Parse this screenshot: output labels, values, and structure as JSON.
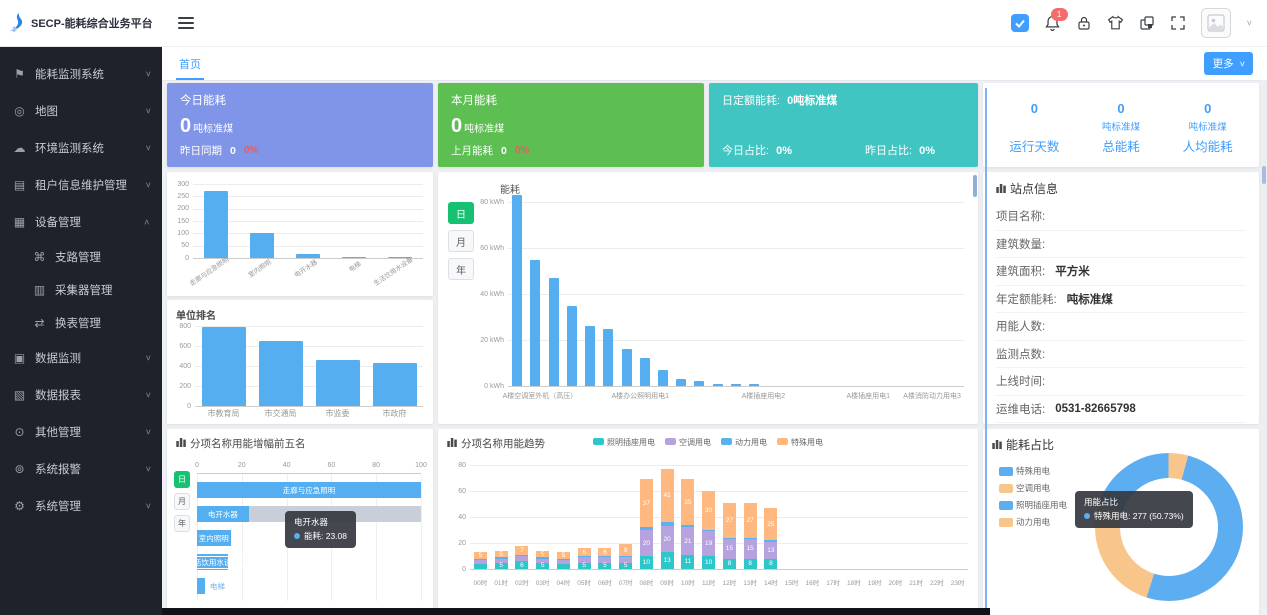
{
  "app": {
    "title": "SECP-能耗综合业务平台"
  },
  "sidebar": {
    "items": [
      {
        "label": "能耗监测系统",
        "icon": "flag-icon",
        "expandable": true
      },
      {
        "label": "地图",
        "icon": "map-pin-icon",
        "expandable": true
      },
      {
        "label": "环境监测系统",
        "icon": "cloud-icon",
        "expandable": true
      },
      {
        "label": "租户信息维护管理",
        "icon": "tenant-doc-icon",
        "expandable": true
      },
      {
        "label": "设备管理",
        "icon": "device-icon",
        "expandable": true,
        "expanded": true,
        "children": [
          {
            "label": "支路管理",
            "icon": "branch-icon"
          },
          {
            "label": "采集器管理",
            "icon": "collector-icon"
          },
          {
            "label": "换表管理",
            "icon": "swap-icon"
          }
        ]
      },
      {
        "label": "数据监测",
        "icon": "data-monitor-icon",
        "expandable": true
      },
      {
        "label": "数据报表",
        "icon": "report-icon",
        "expandable": true
      },
      {
        "label": "其他管理",
        "icon": "other-manage-icon",
        "expandable": true
      },
      {
        "label": "系统报警",
        "icon": "alarm-icon",
        "expandable": true
      },
      {
        "label": "系统管理",
        "icon": "gear-icon",
        "expandable": true
      }
    ]
  },
  "header": {
    "notification_count": "1"
  },
  "tabs": {
    "active": "首页",
    "more_label": "更多"
  },
  "cards": {
    "today": {
      "title": "今日能耗",
      "value": "0",
      "unit": "吨标准煤",
      "compare_label": "昨日同期",
      "compare_value": "0",
      "badge": "0%",
      "color": "#8095e8"
    },
    "month": {
      "title": "本月能耗",
      "value": "0",
      "unit": "吨标准煤",
      "compare_label": "上月能耗",
      "compare_value": "0",
      "badge": "0%",
      "color": "#5dbe52"
    },
    "quota": {
      "title_label": "日定额能耗:",
      "title_value": "0吨标准煤",
      "today_ratio_label": "今日占比:",
      "today_ratio": "0%",
      "yesterday_ratio_label": "昨日占比:",
      "yesterday_ratio": "0%",
      "color": "#41c5c2"
    },
    "stats": {
      "items": [
        {
          "value": "0",
          "unit": "",
          "label": "运行天数"
        },
        {
          "value": "0",
          "unit": "吨标准煤",
          "label": "总能耗"
        },
        {
          "value": "0",
          "unit": "吨标准煤",
          "label": "人均能耗"
        }
      ]
    }
  },
  "site_info": {
    "title": "站点信息",
    "rows": [
      {
        "label": "项目名称:",
        "value": ""
      },
      {
        "label": "建筑数量:",
        "value": ""
      },
      {
        "label": "建筑面积:",
        "value": "平方米"
      },
      {
        "label": "年定额能耗:",
        "value": "吨标准煤"
      },
      {
        "label": "用能人数:",
        "value": ""
      },
      {
        "label": "监测点数:",
        "value": ""
      },
      {
        "label": "上线时间:",
        "value": ""
      },
      {
        "label": "运维电话:",
        "value": "0531-82665798"
      }
    ]
  },
  "chart_data": [
    {
      "id": "item_energy_rank",
      "type": "bar",
      "title": "",
      "categories": [
        "走廊与应急照明",
        "室内照明",
        "电开水器",
        "电梯",
        "生活饮用水设备"
      ],
      "values": [
        270,
        100,
        15,
        6,
        5
      ],
      "ylim": [
        0,
        300
      ],
      "yticks": [
        "300",
        "250",
        "200",
        "150",
        "100",
        "50",
        "0"
      ],
      "bar_color": "#54aeef"
    },
    {
      "id": "unit_rank",
      "type": "bar",
      "title": "单位排名",
      "categories": [
        "市教育局",
        "市交通局",
        "市监委",
        "市政府"
      ],
      "values": [
        790,
        655,
        465,
        435
      ],
      "ylim": [
        0,
        800
      ],
      "yticks": [
        "800",
        "600",
        "400",
        "200",
        "0"
      ],
      "bar_color": "#54aeef"
    },
    {
      "id": "energy_by_branch",
      "type": "bar",
      "title": "能耗",
      "unit": "kWh",
      "toggle": [
        "日",
        "月",
        "年"
      ],
      "active_toggle": "日",
      "values": [
        83,
        55,
        47,
        35,
        26,
        25,
        16,
        12,
        7,
        3,
        2,
        1,
        1,
        1,
        0,
        0,
        0,
        0,
        0,
        0,
        0,
        0,
        0,
        0,
        0
      ],
      "xlabels_sparse": [
        "A楼空调室外机（高压）",
        "A楼办公照明用电1",
        "A楼插座用电2",
        "A楼插座用电1",
        "A楼消防动力用电3"
      ],
      "xlabel_positions_pct": [
        7,
        29,
        56,
        79,
        93
      ],
      "ylim": [
        0,
        80
      ],
      "yticks": [
        "80 kWh",
        "60 kWh",
        "40 kWh",
        "20 kWh",
        "0 kWh"
      ],
      "bar_color": "#54aeef"
    },
    {
      "id": "increase_top5",
      "type": "hbar",
      "title": "分项名称用能增幅前五名",
      "toggle": [
        "日",
        "月",
        "年"
      ],
      "active_toggle": "日",
      "xticks": [
        "0",
        "20",
        "40",
        "60",
        "80",
        "100"
      ],
      "xlim": [
        0,
        100
      ],
      "bars": [
        {
          "label": "走廊与应急照明",
          "value": 100
        },
        {
          "label": "电开水器",
          "value": 23.08,
          "track": true
        },
        {
          "label": "室内照明",
          "value": 15
        },
        {
          "label": "生活饮用水设备",
          "value": 14,
          "outlined": true
        },
        {
          "label": "电梯",
          "value": 3.5,
          "label_outside": true
        }
      ],
      "bar_color": "#54aeef",
      "tooltip": {
        "title": "电开水器",
        "line": "能耗: 23.08"
      }
    },
    {
      "id": "item_trend",
      "type": "stacked_bar",
      "title": "分项名称用能趋势",
      "categories": [
        "00时",
        "01时",
        "02时",
        "03时",
        "04时",
        "05时",
        "06时",
        "07时",
        "08时",
        "09时",
        "10时",
        "11时",
        "12时",
        "13时",
        "14时",
        "15时",
        "16时",
        "17时",
        "18时",
        "19时",
        "20时",
        "21时",
        "22时",
        "23时"
      ],
      "series": [
        {
          "name": "照明插座用电",
          "color": "#2ec7c9",
          "values": [
            4,
            5,
            6,
            5,
            4,
            5,
            5,
            5,
            10,
            13,
            11,
            10,
            8,
            8,
            8,
            0,
            0,
            0,
            0,
            0,
            0,
            0,
            0,
            0
          ]
        },
        {
          "name": "空调用电",
          "color": "#b6a2de",
          "values": [
            3,
            3,
            4,
            3,
            3,
            4,
            4,
            4,
            20,
            20,
            21,
            19,
            15,
            15,
            13,
            0,
            0,
            0,
            0,
            0,
            0,
            0,
            0,
            0
          ]
        },
        {
          "name": "动力用电",
          "color": "#5ab1ef",
          "values": [
            1,
            1,
            1,
            1,
            1,
            1,
            1,
            1,
            2,
            3,
            2,
            1,
            1,
            1,
            1,
            0,
            0,
            0,
            0,
            0,
            0,
            0,
            0,
            0
          ]
        },
        {
          "name": "特殊用电",
          "color": "#ffb980",
          "values": [
            5,
            5,
            7,
            5,
            5,
            6,
            6,
            9,
            37,
            41,
            35,
            30,
            27,
            27,
            25,
            0,
            0,
            0,
            0,
            0,
            0,
            0,
            0,
            0
          ]
        }
      ],
      "ylim": [
        0,
        80
      ],
      "yticks": [
        "80",
        "60",
        "40",
        "20",
        "0"
      ],
      "legend_position": "top"
    },
    {
      "id": "energy_ratio",
      "type": "donut",
      "title": "能耗占比",
      "slices": [
        {
          "name": "特殊用电",
          "value": 277,
          "pct": 50.73,
          "color": "#5caef0"
        },
        {
          "name": "空调用电",
          "pct": 25.1,
          "color": "#f8c58a"
        },
        {
          "name": "照明插座用电",
          "pct": 19.9,
          "color": "#5caef0"
        },
        {
          "name": "动力用电",
          "pct": 4.27,
          "color": "#f8c58a"
        }
      ],
      "legend_position": "left",
      "tooltip": {
        "title": "用能占比",
        "line": "特殊用电: 277 (50.73%)"
      }
    }
  ]
}
